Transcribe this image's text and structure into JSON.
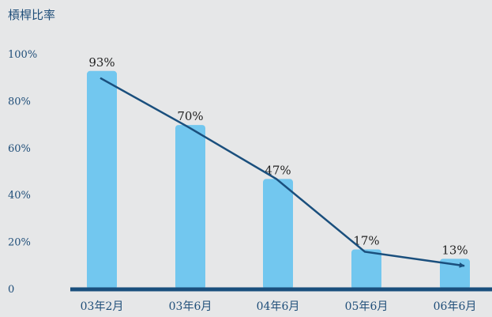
{
  "chart_data": {
    "type": "bar",
    "title": "槓桿比率",
    "categories": [
      "03年2月",
      "03年6月",
      "04年6月",
      "05年6月",
      "06年6月"
    ],
    "values": [
      93,
      70,
      47,
      17,
      13
    ],
    "data_labels": [
      "93%",
      "70%",
      "47%",
      "17%",
      "13%"
    ],
    "y_ticks": [
      "0",
      "20%",
      "40%",
      "60%",
      "80%",
      "100%"
    ],
    "ylim": [
      0,
      100
    ],
    "grid": false,
    "legend": "none",
    "trend_line": {
      "values": [
        90,
        69,
        47,
        16,
        10
      ],
      "arrow": true
    },
    "colors": {
      "bar": "#72c7ef",
      "line": "#1a4f7d",
      "axis": "#1a4f7d",
      "text": "#1f4e79",
      "label": "#222222",
      "background": "#e6e7e8"
    }
  }
}
